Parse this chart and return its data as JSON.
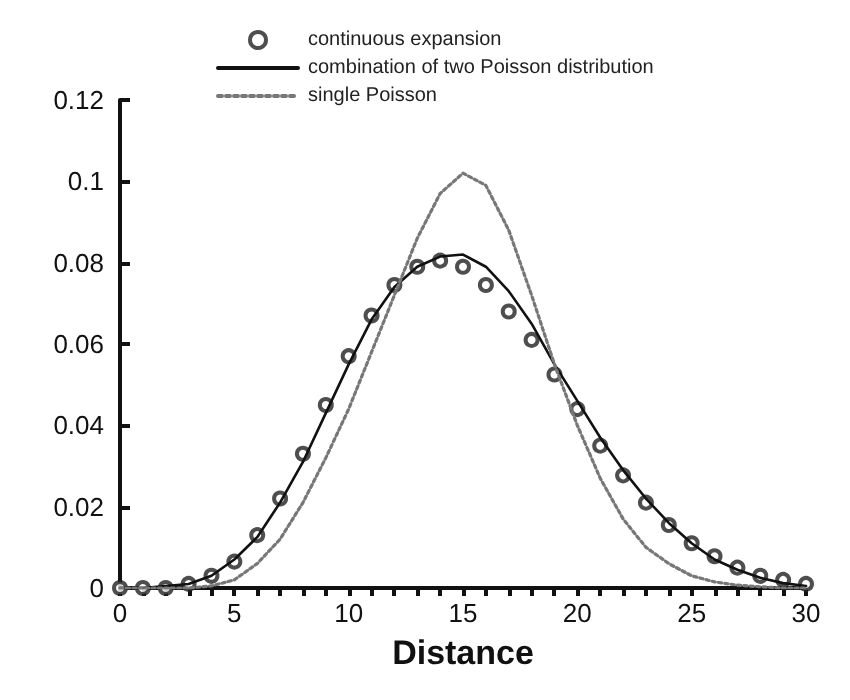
{
  "chart_data": {
    "type": "line",
    "xlabel": "Distance",
    "x": [
      0,
      1,
      2,
      3,
      4,
      5,
      6,
      7,
      8,
      9,
      10,
      11,
      12,
      13,
      14,
      15,
      16,
      17,
      18,
      19,
      20,
      21,
      22,
      23,
      24,
      25,
      26,
      27,
      28,
      29,
      30
    ],
    "xlim": [
      0,
      30
    ],
    "xticks": [
      0,
      5,
      10,
      15,
      20,
      25,
      30
    ],
    "ylim": [
      0,
      0.12
    ],
    "yticks": [
      0,
      0.02,
      0.04,
      0.06,
      0.08,
      0.1,
      0.12
    ],
    "grid": false,
    "legend": "top",
    "series": [
      {
        "name": "continuous expansion",
        "type": "scatter",
        "marker": "circle",
        "color": "#222222",
        "values": [
          0,
          0,
          0,
          0.001,
          0.003,
          0.0065,
          0.013,
          0.022,
          0.033,
          0.045,
          0.057,
          0.067,
          0.0745,
          0.079,
          0.0805,
          0.079,
          0.0745,
          0.068,
          0.061,
          0.0525,
          0.044,
          0.035,
          0.0277,
          0.021,
          0.0155,
          0.011,
          0.0078,
          0.005,
          0.003,
          0.002,
          0.001
        ]
      },
      {
        "name": "combination of two Poisson distribution",
        "line_style": "solid",
        "marker": "none",
        "color": "#111111",
        "values": [
          0,
          0,
          0.0005,
          0.001,
          0.003,
          0.007,
          0.0125,
          0.021,
          0.031,
          0.043,
          0.055,
          0.066,
          0.074,
          0.079,
          0.0815,
          0.082,
          0.079,
          0.073,
          0.065,
          0.055,
          0.046,
          0.037,
          0.029,
          0.022,
          0.016,
          0.011,
          0.007,
          0.0045,
          0.0025,
          0.0012,
          0.0005
        ]
      },
      {
        "name": "single Poisson",
        "line_style": "dotted",
        "marker": "none",
        "color": "#777777",
        "values": [
          0,
          0,
          0,
          0,
          0.0005,
          0.002,
          0.006,
          0.012,
          0.021,
          0.032,
          0.044,
          0.058,
          0.072,
          0.086,
          0.097,
          0.102,
          0.099,
          0.088,
          0.072,
          0.055,
          0.04,
          0.027,
          0.017,
          0.01,
          0.006,
          0.003,
          0.0015,
          0.0007,
          0.0003,
          0,
          0
        ]
      }
    ]
  }
}
